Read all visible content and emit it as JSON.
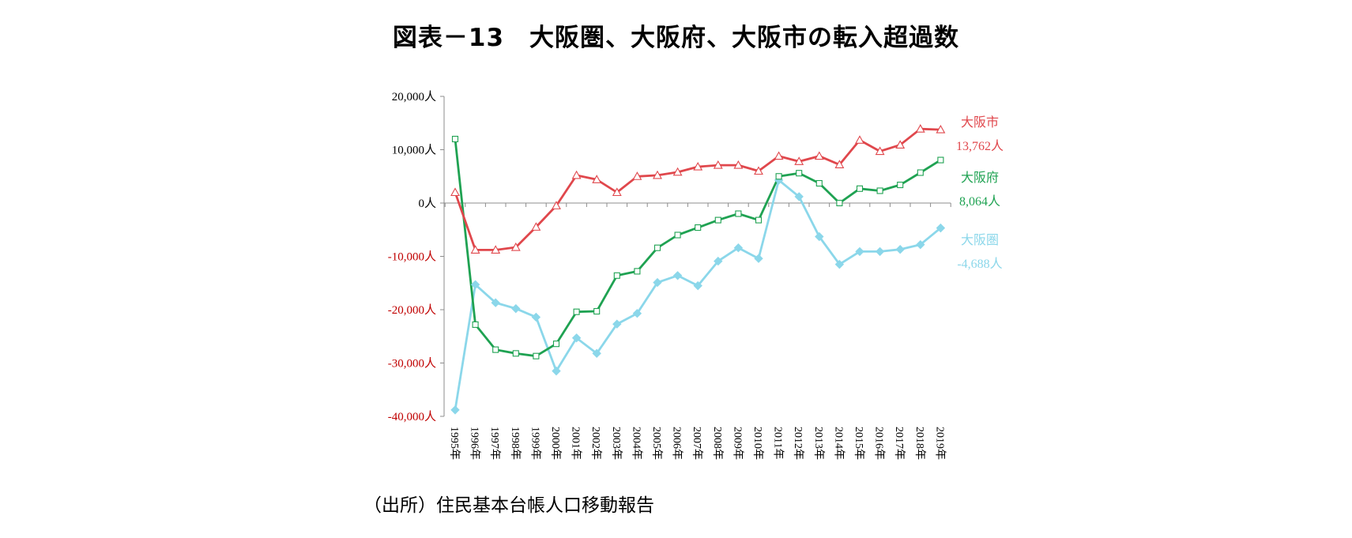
{
  "title": "図表－13　大阪圏、大阪府、大阪市の転入超過数",
  "source": "（出所）住民基本台帳人口移動報告",
  "colors": {
    "osaka_city": "#e0474c",
    "osaka_pref": "#1fa252",
    "osaka_area": "#8bd7ea",
    "axis": "#8c8c8c",
    "tick_positive": "#000000",
    "tick_negative": "#c00000"
  },
  "chart_data": {
    "type": "line",
    "title": "図表－13　大阪圏、大阪府、大阪市の転入超過数",
    "xlabel": "",
    "ylabel": "",
    "ylim": [
      -40000,
      20000
    ],
    "y_ticks": [
      20000,
      10000,
      0,
      -10000,
      -20000,
      -30000,
      -40000
    ],
    "y_tick_labels": [
      "20,000人",
      "10,000人",
      "0人",
      "-10,000人",
      "-20,000人",
      "-30,000人",
      "-40,000人"
    ],
    "categories": [
      "1995年",
      "1996年",
      "1997年",
      "1998年",
      "1999年",
      "2000年",
      "2001年",
      "2002年",
      "2003年",
      "2004年",
      "2005年",
      "2006年",
      "2007年",
      "2008年",
      "2009年",
      "2010年",
      "2011年",
      "2012年",
      "2013年",
      "2014年",
      "2015年",
      "2016年",
      "2017年",
      "2018年",
      "2019年"
    ],
    "legend_placement": "right",
    "grid": false,
    "series": [
      {
        "name": "大阪市",
        "end_label": "13,762人",
        "color": "#e0474c",
        "marker": "triangle",
        "values": [
          2000,
          -8800,
          -8800,
          -8300,
          -4500,
          -500,
          5200,
          4400,
          2000,
          5000,
          5200,
          5800,
          6800,
          7100,
          7100,
          6000,
          8800,
          7800,
          8800,
          7200,
          11800,
          9700,
          10900,
          13900,
          13762
        ]
      },
      {
        "name": "大阪府",
        "end_label": "8,064人",
        "color": "#1fa252",
        "marker": "square",
        "values": [
          12000,
          -22800,
          -27500,
          -28200,
          -28700,
          -26400,
          -20400,
          -20300,
          -13600,
          -12800,
          -8400,
          -6000,
          -4600,
          -3200,
          -2000,
          -3200,
          5000,
          5600,
          3700,
          0,
          2700,
          2300,
          3400,
          5700,
          8064
        ]
      },
      {
        "name": "大阪圏",
        "end_label": "-4,688人",
        "color": "#8bd7ea",
        "marker": "diamond",
        "values": [
          -38800,
          -15300,
          -18700,
          -19800,
          -21400,
          -31500,
          -25300,
          -28200,
          -22700,
          -20700,
          -14900,
          -13600,
          -15500,
          -10900,
          -8400,
          -10400,
          4300,
          1200,
          -6300,
          -11500,
          -9100,
          -9100,
          -8700,
          -7800,
          -4688
        ]
      }
    ]
  }
}
